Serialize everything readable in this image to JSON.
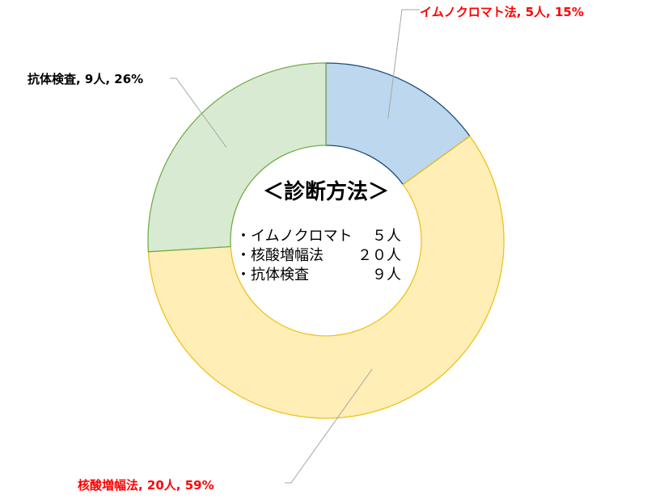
{
  "chart_data": {
    "type": "pie",
    "donut": true,
    "slices": [
      {
        "label": "イムノクロマト法",
        "count": "5人",
        "value": 15,
        "display": "イムノクロマト法, 5人, 15%",
        "fill": "#bdd7ee",
        "stroke": "#1f4e79",
        "label_color": "#ff0000"
      },
      {
        "label": "核酸増幅法",
        "count": "20人",
        "value": 59,
        "display": "核酸増幅法, 20人, 59%",
        "fill": "#ffeeb5",
        "stroke": "#f0c020",
        "label_color": "#ff0000"
      },
      {
        "label": "抗体検査",
        "count": "9人",
        "value": 26,
        "display": "抗体検査, 9人, 26%",
        "fill": "#d9ead3",
        "stroke": "#70ad47",
        "label_color": "#000000"
      }
    ],
    "center": {
      "title": "＜診断方法＞",
      "lines": [
        {
          "name": "・イムノクロマト",
          "count": "５人"
        },
        {
          "name": "・核酸増幅法",
          "count": "２０人"
        },
        {
          "name": "・抗体検査",
          "count": "９人"
        }
      ]
    },
    "legend": "none"
  }
}
